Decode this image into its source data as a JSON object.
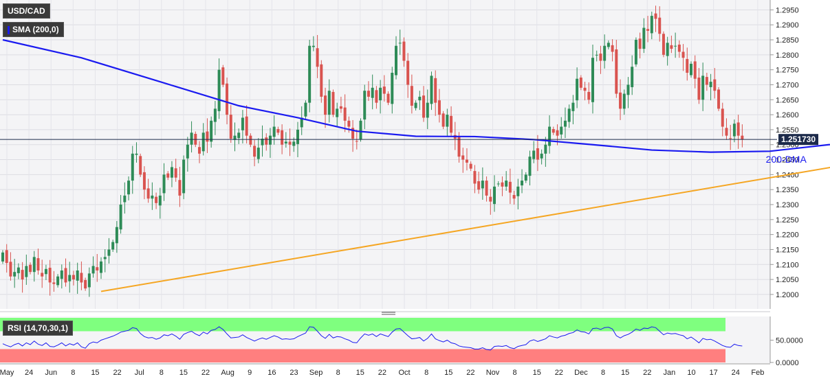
{
  "symbol_label": "USD/CAD",
  "sma_label": "SMA (200,0)",
  "rsi_label": "RSI (14,70,30,1)",
  "price_tag": "1.251730",
  "dma_annotation": "200-DMA",
  "colors": {
    "up_candle": "#2e8b57",
    "down_candle": "#d9534f",
    "sma_line": "#1a1af0",
    "trendline": "#f5a623",
    "rsi_line": "#1a1af0",
    "rsi_overbought_zone": "#7fff7f",
    "rsi_oversold_zone": "#ff7f7f",
    "background": "#f4f4f6"
  },
  "chart_data": {
    "type": "candlestick",
    "ylim": [
      1.197,
      1.296
    ],
    "yticks": [
      "1.2000",
      "1.2050",
      "1.2100",
      "1.2150",
      "1.2200",
      "1.2250",
      "1.2300",
      "1.2350",
      "1.2400",
      "1.2450",
      "1.2500",
      "1.2550",
      "1.2600",
      "1.2650",
      "1.2700",
      "1.2750",
      "1.2800",
      "1.2850",
      "1.2900",
      "1.2950"
    ],
    "xticks": [
      "May",
      "24",
      "Jun",
      "8",
      "15",
      "22",
      "Jul",
      "8",
      "15",
      "22",
      "Aug",
      "9",
      "16",
      "23",
      "Sep",
      "8",
      "15",
      "22",
      "Oct",
      "8",
      "15",
      "22",
      "Nov",
      "8",
      "15",
      "22",
      "Dec",
      "8",
      "15",
      "22",
      "Jan",
      "10",
      "17",
      "24",
      "Feb"
    ],
    "last_price": 1.25173,
    "closes": [
      1.214,
      1.2105,
      1.206,
      1.2075,
      1.209,
      1.205,
      1.2095,
      1.2075,
      1.2125,
      1.208,
      1.206,
      1.2085,
      1.204,
      1.2035,
      1.206,
      1.208,
      1.204,
      1.2065,
      1.205,
      1.208,
      1.204,
      1.202,
      1.207,
      1.2095,
      1.208,
      1.211,
      1.2125,
      1.215,
      1.2175,
      1.2225,
      1.23,
      1.233,
      1.238,
      1.247,
      1.247,
      1.24,
      1.235,
      1.232,
      1.233,
      1.2305,
      1.233,
      1.24,
      1.239,
      1.2425,
      1.239,
      1.233,
      1.245,
      1.25,
      1.254,
      1.25,
      1.247,
      1.254,
      1.251,
      1.258,
      1.262,
      1.275,
      1.27,
      1.26,
      1.252,
      1.253,
      1.254,
      1.259,
      1.253,
      1.25,
      1.246,
      1.249,
      1.252,
      1.25,
      1.253,
      1.256,
      1.254,
      1.25,
      1.251,
      1.25,
      1.251,
      1.255,
      1.259,
      1.264,
      1.283,
      1.283,
      1.276,
      1.266,
      1.26,
      1.268,
      1.26,
      1.262,
      1.262,
      1.258,
      1.256,
      1.252,
      1.251,
      1.258,
      1.268,
      1.266,
      1.269,
      1.264,
      1.269,
      1.267,
      1.264,
      1.274,
      1.283,
      1.284,
      1.278,
      1.27,
      1.263,
      1.264,
      1.266,
      1.259,
      1.264,
      1.273,
      1.264,
      1.26,
      1.256,
      1.26,
      1.254,
      1.252,
      1.246,
      1.245,
      1.244,
      1.242,
      1.237,
      1.235,
      1.238,
      1.233,
      1.231,
      1.236,
      1.237,
      1.236,
      1.238,
      1.234,
      1.232,
      1.236,
      1.238,
      1.24,
      1.246,
      1.248,
      1.245,
      1.247,
      1.25,
      1.256,
      1.254,
      1.253,
      1.256,
      1.258,
      1.262,
      1.264,
      1.272,
      1.269,
      1.268,
      1.265,
      1.279,
      1.28,
      1.278,
      1.283,
      1.284,
      1.281,
      1.267,
      1.262,
      1.267,
      1.27,
      1.276,
      1.285,
      1.282,
      1.289,
      1.288,
      1.293,
      1.292,
      1.287,
      1.28,
      1.284,
      1.282,
      1.283,
      1.281,
      1.279,
      1.274,
      1.277,
      1.272,
      1.265,
      1.273,
      1.27,
      1.271,
      1.268,
      1.262,
      1.256,
      1.253,
      1.252,
      1.257,
      1.253,
      1.2517
    ],
    "sma200": [
      {
        "x": 0,
        "y": 1.285
      },
      {
        "x": 20,
        "y": 1.279
      },
      {
        "x": 40,
        "y": 1.271
      },
      {
        "x": 60,
        "y": 1.263
      },
      {
        "x": 75,
        "y": 1.259
      },
      {
        "x": 90,
        "y": 1.2545
      },
      {
        "x": 105,
        "y": 1.2528
      },
      {
        "x": 120,
        "y": 1.2527
      },
      {
        "x": 135,
        "y": 1.2517
      },
      {
        "x": 150,
        "y": 1.25
      },
      {
        "x": 165,
        "y": 1.2482
      },
      {
        "x": 180,
        "y": 1.2475
      },
      {
        "x": 195,
        "y": 1.2478
      },
      {
        "x": 210,
        "y": 1.25
      },
      {
        "x": 225,
        "y": 1.2503
      }
    ],
    "trendline": [
      {
        "x": 25,
        "y": 1.201
      },
      {
        "x": 240,
        "y": 1.249
      }
    ],
    "rsi": {
      "ylim": [
        0,
        100
      ],
      "yticks": [
        "0.0000",
        "50.0000"
      ],
      "overbought": 70,
      "oversold": 30,
      "values": [
        42,
        38,
        35,
        40,
        43,
        37,
        44,
        40,
        48,
        41,
        38,
        44,
        36,
        35,
        39,
        44,
        37,
        42,
        39,
        44,
        35,
        32,
        42,
        46,
        44,
        50,
        53,
        56,
        59,
        63,
        68,
        70,
        72,
        78,
        76,
        65,
        58,
        55,
        56,
        52,
        55,
        62,
        60,
        64,
        59,
        52,
        63,
        67,
        70,
        64,
        60,
        68,
        64,
        72,
        74,
        80,
        74,
        64,
        55,
        56,
        57,
        62,
        56,
        52,
        48,
        52,
        55,
        52,
        56,
        60,
        57,
        52,
        53,
        52,
        53,
        58,
        62,
        66,
        80,
        79,
        70,
        60,
        54,
        63,
        55,
        58,
        57,
        53,
        50,
        45,
        44,
        55,
        64,
        61,
        64,
        58,
        64,
        61,
        58,
        68,
        75,
        76,
        68,
        60,
        53,
        54,
        56,
        48,
        54,
        64,
        53,
        49,
        46,
        50,
        44,
        42,
        37,
        35,
        34,
        33,
        30,
        30,
        33,
        29,
        28,
        36,
        37,
        36,
        38,
        33,
        31,
        36,
        38,
        40,
        48,
        51,
        47,
        50,
        53,
        60,
        57,
        55,
        59,
        61,
        65,
        67,
        73,
        69,
        68,
        64,
        76,
        77,
        74,
        78,
        79,
        75,
        60,
        55,
        60,
        63,
        68,
        75,
        72,
        77,
        76,
        80,
        78,
        70,
        62,
        66,
        64,
        65,
        62,
        60,
        53,
        57,
        51,
        44,
        54,
        51,
        52,
        48,
        43,
        38,
        35,
        34,
        41,
        38,
        37
      ]
    }
  }
}
